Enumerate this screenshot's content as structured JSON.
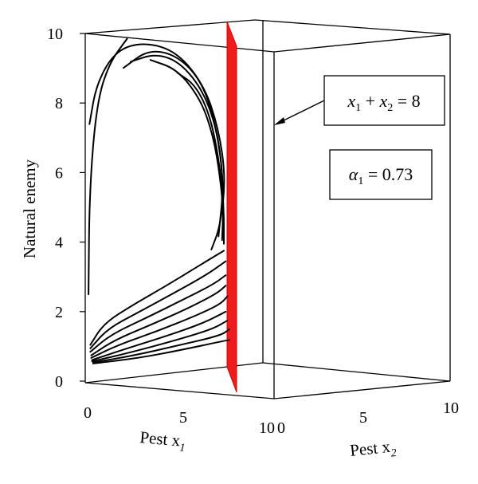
{
  "chart_data": {
    "type": "3d-line",
    "zlabel": "Natural enemy",
    "xlabel": "Pest x",
    "xlabel_sub": "1",
    "ylabel": "Pest x",
    "ylabel_sub": "2",
    "xlim": [
      0,
      10
    ],
    "ylim": [
      0,
      10
    ],
    "zlim": [
      0,
      10
    ],
    "x_ticks": [
      "0",
      "5",
      "10"
    ],
    "y_ticks": [
      "0",
      "5",
      "10"
    ],
    "z_ticks": [
      "0",
      "2",
      "4",
      "6",
      "8",
      "10"
    ],
    "plane": {
      "equation": "x1 + x2 = 8",
      "label_parts": [
        "x",
        "1",
        " + ",
        "x",
        "2",
        " = 8"
      ],
      "color": "#ee1c1c"
    },
    "parameter": {
      "symbol": "α",
      "sub": "1",
      "value_text": " = 0.73"
    },
    "series": [
      {
        "points": [
          [
            0.05,
            2.5
          ],
          [
            0.1,
            5.5
          ],
          [
            0.5,
            8
          ],
          [
            1.2,
            9.2
          ],
          [
            2.2,
            9.95
          ]
        ]
      },
      {
        "points": [
          [
            0.1,
            7.4
          ],
          [
            0.5,
            8.6
          ],
          [
            1.6,
            9.6
          ],
          [
            3.2,
            9.9
          ],
          [
            5.0,
            9.7
          ],
          [
            6.5,
            8.8
          ],
          [
            7.3,
            7.6
          ],
          [
            7.7,
            6.2
          ],
          [
            7.4,
            4.8
          ],
          [
            6.9,
            4.1
          ]
        ]
      },
      {
        "points": [
          [
            2.0,
            9.1
          ],
          [
            3.4,
            9.7
          ],
          [
            5.0,
            9.6
          ],
          [
            6.4,
            8.9
          ],
          [
            7.2,
            7.6
          ],
          [
            7.6,
            6.0
          ],
          [
            7.3,
            4.5
          ]
        ]
      },
      {
        "points": [
          [
            2.4,
            9.3
          ],
          [
            3.8,
            9.6
          ],
          [
            5.2,
            9.4
          ],
          [
            6.5,
            8.6
          ],
          [
            7.3,
            7.4
          ],
          [
            7.6,
            5.8
          ],
          [
            7.5,
            4.4
          ]
        ]
      },
      {
        "points": [
          [
            3.5,
            9.4
          ],
          [
            5.0,
            9.2
          ],
          [
            6.3,
            8.4
          ],
          [
            7.0,
            7.4
          ],
          [
            7.4,
            6.2
          ],
          [
            7.6,
            5.0
          ]
        ]
      },
      {
        "points": [
          [
            5.0,
            9.1
          ],
          [
            6.0,
            8.8
          ],
          [
            6.8,
            8.0
          ],
          [
            7.3,
            6.8
          ],
          [
            7.6,
            5.4
          ],
          [
            7.6,
            4.3
          ]
        ]
      },
      {
        "points": [
          [
            0.15,
            1.05
          ],
          [
            0.9,
            1.7
          ],
          [
            2.5,
            2.3
          ],
          [
            4.4,
            2.95
          ],
          [
            6.2,
            3.6
          ],
          [
            7.6,
            4.1
          ]
        ]
      },
      {
        "points": [
          [
            0.15,
            0.95
          ],
          [
            1.1,
            1.55
          ],
          [
            2.8,
            2.1
          ],
          [
            4.8,
            2.75
          ],
          [
            6.6,
            3.35
          ],
          [
            7.7,
            3.8
          ]
        ]
      },
      {
        "points": [
          [
            0.15,
            0.85
          ],
          [
            1.3,
            1.4
          ],
          [
            3.2,
            1.95
          ],
          [
            5.2,
            2.55
          ],
          [
            7.0,
            3.1
          ],
          [
            7.7,
            3.4
          ]
        ]
      },
      {
        "points": [
          [
            0.2,
            0.75
          ],
          [
            1.5,
            1.25
          ],
          [
            3.6,
            1.8
          ],
          [
            5.6,
            2.35
          ],
          [
            7.2,
            2.85
          ],
          [
            7.7,
            3.1
          ]
        ]
      },
      {
        "points": [
          [
            0.2,
            0.68
          ],
          [
            1.7,
            1.12
          ],
          [
            3.9,
            1.62
          ],
          [
            6.0,
            2.15
          ],
          [
            7.4,
            2.55
          ],
          [
            7.8,
            2.8
          ]
        ]
      },
      {
        "points": [
          [
            0.25,
            0.62
          ],
          [
            2.0,
            1.0
          ],
          [
            4.3,
            1.48
          ],
          [
            6.4,
            1.95
          ],
          [
            7.7,
            2.35
          ]
        ]
      },
      {
        "points": [
          [
            0.25,
            0.58
          ],
          [
            2.3,
            0.92
          ],
          [
            4.7,
            1.36
          ],
          [
            6.9,
            1.8
          ],
          [
            7.8,
            2.1
          ]
        ]
      },
      {
        "points": [
          [
            0.3,
            0.55
          ],
          [
            2.6,
            0.86
          ],
          [
            5.0,
            1.25
          ],
          [
            7.4,
            1.65
          ],
          [
            7.9,
            1.85
          ]
        ]
      },
      {
        "points": [
          [
            0.3,
            0.52
          ],
          [
            2.9,
            0.8
          ],
          [
            5.3,
            1.15
          ],
          [
            7.9,
            1.55
          ]
        ]
      }
    ]
  }
}
